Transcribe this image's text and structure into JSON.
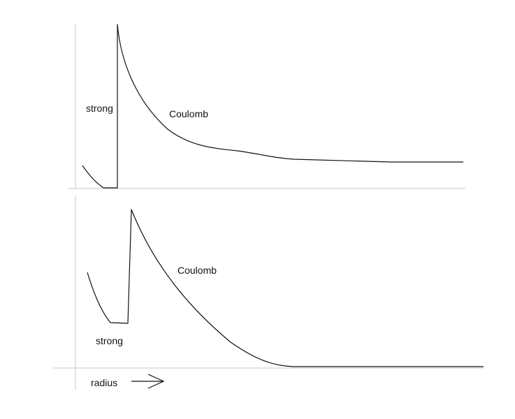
{
  "panels": [
    {
      "strong_label": "strong",
      "coulomb_label": "Coulomb"
    },
    {
      "strong_label": "strong",
      "coulomb_label": "Coulomb"
    }
  ],
  "x_axis_label": "radius",
  "colors": {
    "curve": "#111111",
    "axis": "#c8c8c8",
    "background": "#ffffff"
  }
}
